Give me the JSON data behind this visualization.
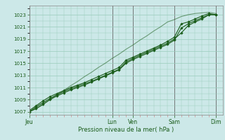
{
  "background_color": "#cce8e8",
  "grid_color": "#99ccbb",
  "line_color": "#1a5c1a",
  "marker_color": "#1a5c1a",
  "title": "Pression niveau de la mer( hPa )",
  "ylim": [
    1006.5,
    1024.5
  ],
  "ytick_values": [
    1007,
    1009,
    1011,
    1013,
    1015,
    1017,
    1019,
    1021,
    1023
  ],
  "x_day_labels": [
    "Jeu",
    "Lun",
    "Ven",
    "Sam",
    "Dim"
  ],
  "x_day_positions": [
    0,
    12,
    15,
    21,
    27
  ],
  "xlim": [
    0,
    28
  ],
  "series1": [
    1007,
    1007.8,
    1008.5,
    1009.2,
    1009.8,
    1010.3,
    1010.8,
    1011.2,
    1011.6,
    1012.0,
    1012.5,
    1013.0,
    1013.5,
    1014.0,
    1015.2,
    1015.8,
    1016.3,
    1016.8,
    1017.3,
    1017.8,
    1018.3,
    1019.0,
    1020.0,
    1021.2,
    1021.8,
    1022.3,
    1023.0,
    1023.0
  ],
  "series2": [
    1007.2,
    1008.0,
    1008.8,
    1009.5,
    1010.0,
    1010.5,
    1011.0,
    1011.4,
    1011.8,
    1012.3,
    1012.8,
    1013.3,
    1013.8,
    1014.3,
    1015.5,
    1016.0,
    1016.5,
    1017.0,
    1017.5,
    1018.0,
    1018.6,
    1019.3,
    1021.5,
    1021.8,
    1022.3,
    1022.8,
    1023.2,
    1023.0
  ],
  "series3": [
    1007.0,
    1007.5,
    1008.2,
    1009.0,
    1009.6,
    1010.1,
    1010.6,
    1011.0,
    1011.4,
    1011.9,
    1012.4,
    1012.9,
    1013.4,
    1013.9,
    1015.0,
    1015.6,
    1016.1,
    1016.6,
    1017.1,
    1017.6,
    1018.1,
    1018.8,
    1020.8,
    1021.5,
    1022.0,
    1022.5,
    1023.0,
    1023.0
  ],
  "series_ref": [
    1007.0,
    1007.6,
    1008.3,
    1009.0,
    1009.8,
    1010.5,
    1011.3,
    1012.0,
    1012.8,
    1013.5,
    1014.3,
    1015.0,
    1015.8,
    1016.5,
    1017.3,
    1018.0,
    1018.8,
    1019.5,
    1020.3,
    1021.0,
    1021.8,
    1022.2,
    1022.7,
    1023.0,
    1023.2,
    1023.3,
    1023.4,
    1023.2
  ],
  "minor_xtick_color": "#cc8888",
  "vline_color": "#666666",
  "spine_color": "#888888",
  "ylabel_color": "#1a5c1a",
  "xlabel_color": "#1a5c1a"
}
